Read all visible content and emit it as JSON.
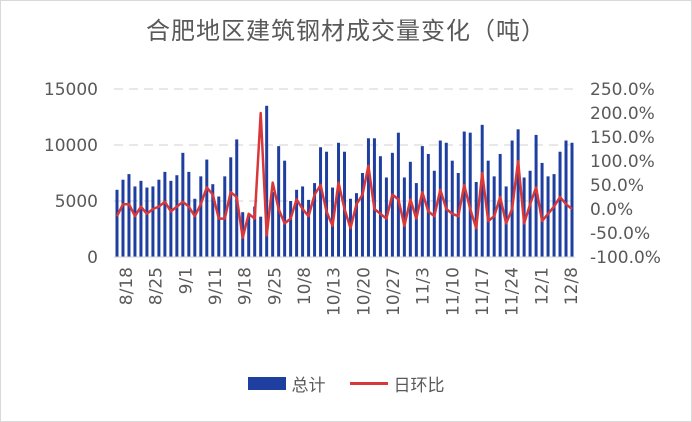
{
  "chart_data": {
    "type": "bar",
    "title": "合肥地区建筑钢材成交量变化（吨）",
    "xlabel": "",
    "ylabel": "",
    "ylim": [
      0,
      15000
    ],
    "y2lim": [
      -1.0,
      2.5
    ],
    "yticks": [
      "0",
      "5000",
      "10000",
      "15000"
    ],
    "y2ticks": [
      "-100.0%",
      "-50.0%",
      "0.0%",
      "50.0%",
      "100.0%",
      "150.0%",
      "200.0%",
      "250.0%"
    ],
    "x_tick_labels": [
      "8/18",
      "8/25",
      "9/1",
      "9/11",
      "9/18",
      "9/25",
      "10/8",
      "10/13",
      "10/20",
      "10/27",
      "11/3",
      "11/10",
      "11/17",
      "11/24",
      "12/1",
      "12/8"
    ],
    "grid": true,
    "legend_position": "bottom",
    "series": [
      {
        "name": "总计",
        "type": "bar",
        "axis": "left",
        "color": "#1f3fa0",
        "values": [
          6000,
          6900,
          7400,
          6300,
          6800,
          6200,
          6300,
          6900,
          7600,
          6800,
          7300,
          9300,
          7600,
          5200,
          7200,
          8700,
          6500,
          5400,
          7200,
          8900,
          10500,
          4000,
          3700,
          4500,
          3600,
          13500,
          5800,
          9900,
          8600,
          5000,
          6000,
          6300,
          5100,
          6600,
          9800,
          9400,
          6200,
          10200,
          9400,
          5200,
          5700,
          7500,
          10600,
          10600,
          9000,
          7100,
          9300,
          11100,
          7100,
          8500,
          6600,
          9900,
          9200,
          7700,
          10400,
          10200,
          8600,
          7500,
          11200,
          11100,
          6700,
          11800,
          8600,
          7200,
          9200,
          6300,
          10400,
          11400,
          7100,
          7700,
          10900,
          8400,
          7200,
          7400,
          9400,
          10400,
          10200
        ]
      },
      {
        "name": "日环比",
        "type": "line",
        "axis": "right",
        "color": "#d9383a",
        "values": [
          -0.15,
          0.1,
          0.1,
          -0.15,
          0.05,
          -0.1,
          0.0,
          0.05,
          0.15,
          -0.05,
          0.05,
          0.15,
          0.05,
          -0.15,
          0.1,
          0.45,
          0.3,
          -0.2,
          -0.2,
          0.35,
          0.25,
          -0.6,
          -0.1,
          -0.2,
          2.0,
          -0.55,
          0.55,
          0.0,
          -0.3,
          -0.2,
          0.2,
          0.0,
          -0.15,
          0.3,
          0.5,
          -0.05,
          -0.35,
          0.55,
          0.0,
          -0.4,
          0.1,
          0.3,
          0.9,
          0.0,
          -0.1,
          -0.2,
          0.3,
          0.2,
          -0.35,
          0.2,
          -0.2,
          0.35,
          -0.05,
          -0.15,
          0.4,
          0.0,
          -0.1,
          -0.15,
          0.5,
          0.0,
          -0.4,
          0.75,
          -0.25,
          -0.15,
          0.25,
          -0.3,
          0.0,
          1.0,
          -0.3,
          0.1,
          0.45,
          -0.25,
          -0.1,
          0.05,
          0.25,
          0.1,
          0.0
        ]
      }
    ]
  }
}
